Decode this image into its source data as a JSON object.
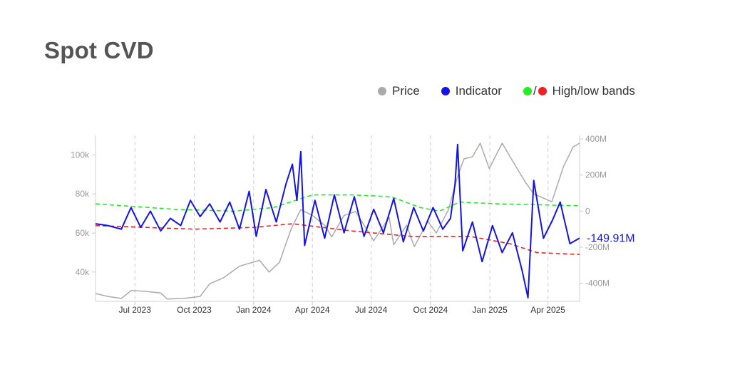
{
  "page": {
    "title": "Spot CVD"
  },
  "legend": {
    "price": {
      "label": "Price",
      "color": "#aaaaaa"
    },
    "indicator": {
      "label": "Indicator",
      "color": "#1414e6"
    },
    "bands": {
      "label": "High/low bands",
      "high_color": "#22ee22",
      "low_color": "#ee2222",
      "separator": "/"
    }
  },
  "chart_data": {
    "type": "line",
    "x_range": [
      "2023-05-01",
      "2025-05-20"
    ],
    "x_ticks": [
      "Jul 2023",
      "Oct 2023",
      "Jan 2024",
      "Apr 2024",
      "Jul 2024",
      "Oct 2024",
      "Jan 2025",
      "Apr 2025"
    ],
    "x_tick_dates": [
      "2023-07-01",
      "2023-10-01",
      "2024-01-01",
      "2024-04-01",
      "2024-07-01",
      "2024-10-01",
      "2025-01-01",
      "2025-04-01"
    ],
    "y_left": {
      "range": [
        25000,
        110000
      ],
      "ticks": [
        40000,
        60000,
        80000,
        100000
      ],
      "tick_labels": [
        "40k",
        "60k",
        "80k",
        "100k"
      ]
    },
    "y_right": {
      "range": [
        -500000000,
        420000000
      ],
      "ticks": [
        -400000000,
        -200000000,
        0,
        200000000,
        400000000
      ],
      "tick_labels": [
        "-400M",
        "-200M",
        "0",
        "200M",
        "400M"
      ]
    },
    "last_value_label": "-149.91M",
    "series": [
      {
        "name": "Price",
        "axis": "left",
        "color": "#aaaaaa",
        "dash": "solid",
        "points": [
          [
            "2023-05-01",
            29000
          ],
          [
            "2023-05-20",
            27500
          ],
          [
            "2023-06-10",
            26500
          ],
          [
            "2023-06-25",
            30500
          ],
          [
            "2023-07-15",
            30200
          ],
          [
            "2023-08-10",
            29300
          ],
          [
            "2023-08-20",
            26200
          ],
          [
            "2023-09-15",
            26500
          ],
          [
            "2023-10-10",
            27500
          ],
          [
            "2023-10-25",
            34000
          ],
          [
            "2023-11-15",
            37000
          ],
          [
            "2023-12-10",
            43000
          ],
          [
            "2024-01-10",
            46000
          ],
          [
            "2024-01-25",
            40000
          ],
          [
            "2024-02-10",
            45000
          ],
          [
            "2024-02-28",
            62000
          ],
          [
            "2024-03-14",
            72000
          ],
          [
            "2024-04-01",
            69000
          ],
          [
            "2024-04-20",
            64000
          ],
          [
            "2024-05-01",
            58000
          ],
          [
            "2024-05-20",
            69000
          ],
          [
            "2024-06-07",
            71000
          ],
          [
            "2024-07-05",
            56000
          ],
          [
            "2024-07-29",
            68000
          ],
          [
            "2024-08-05",
            54000
          ],
          [
            "2024-08-25",
            64000
          ],
          [
            "2024-09-06",
            53000
          ],
          [
            "2024-09-27",
            66000
          ],
          [
            "2024-10-10",
            60000
          ],
          [
            "2024-10-29",
            72000
          ],
          [
            "2024-11-12",
            89000
          ],
          [
            "2024-11-22",
            98000
          ],
          [
            "2024-12-05",
            99000
          ],
          [
            "2024-12-17",
            106000
          ],
          [
            "2024-12-31",
            93000
          ],
          [
            "2025-01-20",
            106000
          ],
          [
            "2025-02-05",
            97000
          ],
          [
            "2025-02-25",
            86000
          ],
          [
            "2025-03-10",
            80000
          ],
          [
            "2025-04-07",
            76000
          ],
          [
            "2025-04-25",
            94000
          ],
          [
            "2025-05-10",
            104000
          ],
          [
            "2025-05-20",
            106000
          ]
        ]
      },
      {
        "name": "Indicator",
        "axis": "right",
        "color": "#1414e6",
        "dash": "solid",
        "points": [
          [
            "2023-05-01",
            -70000000
          ],
          [
            "2023-05-20",
            -80000000
          ],
          [
            "2023-06-10",
            -100000000
          ],
          [
            "2023-06-25",
            20000000
          ],
          [
            "2023-07-10",
            -90000000
          ],
          [
            "2023-07-25",
            0
          ],
          [
            "2023-08-10",
            -110000000
          ],
          [
            "2023-08-25",
            -40000000
          ],
          [
            "2023-09-10",
            -80000000
          ],
          [
            "2023-09-25",
            60000000
          ],
          [
            "2023-10-10",
            -30000000
          ],
          [
            "2023-10-25",
            40000000
          ],
          [
            "2023-11-10",
            -60000000
          ],
          [
            "2023-11-25",
            50000000
          ],
          [
            "2023-12-10",
            -100000000
          ],
          [
            "2023-12-25",
            110000000
          ],
          [
            "2024-01-05",
            -140000000
          ],
          [
            "2024-01-20",
            120000000
          ],
          [
            "2024-02-05",
            -60000000
          ],
          [
            "2024-02-20",
            150000000
          ],
          [
            "2024-03-01",
            260000000
          ],
          [
            "2024-03-08",
            60000000
          ],
          [
            "2024-03-14",
            330000000
          ],
          [
            "2024-03-20",
            -190000000
          ],
          [
            "2024-04-05",
            60000000
          ],
          [
            "2024-04-20",
            -150000000
          ],
          [
            "2024-05-05",
            90000000
          ],
          [
            "2024-05-20",
            -120000000
          ],
          [
            "2024-06-05",
            80000000
          ],
          [
            "2024-06-20",
            -140000000
          ],
          [
            "2024-07-05",
            10000000
          ],
          [
            "2024-07-20",
            -120000000
          ],
          [
            "2024-08-05",
            70000000
          ],
          [
            "2024-08-20",
            -170000000
          ],
          [
            "2024-09-05",
            20000000
          ],
          [
            "2024-09-20",
            -110000000
          ],
          [
            "2024-10-05",
            20000000
          ],
          [
            "2024-10-20",
            -100000000
          ],
          [
            "2024-11-01",
            -40000000
          ],
          [
            "2024-11-08",
            150000000
          ],
          [
            "2024-11-12",
            370000000
          ],
          [
            "2024-11-20",
            -220000000
          ],
          [
            "2024-12-05",
            -60000000
          ],
          [
            "2024-12-20",
            -280000000
          ],
          [
            "2025-01-05",
            -80000000
          ],
          [
            "2025-01-20",
            -230000000
          ],
          [
            "2025-02-05",
            -120000000
          ],
          [
            "2025-02-20",
            -330000000
          ],
          [
            "2025-03-01",
            -480000000
          ],
          [
            "2025-03-10",
            170000000
          ],
          [
            "2025-03-25",
            -150000000
          ],
          [
            "2025-04-08",
            -50000000
          ],
          [
            "2025-04-20",
            50000000
          ],
          [
            "2025-05-05",
            -180000000
          ],
          [
            "2025-05-20",
            -149910000
          ]
        ]
      },
      {
        "name": "High band",
        "axis": "right",
        "color": "#22ee22",
        "dash": "dashed",
        "points": [
          [
            "2023-05-01",
            40000000
          ],
          [
            "2023-09-01",
            10000000
          ],
          [
            "2023-12-01",
            0
          ],
          [
            "2024-02-01",
            20000000
          ],
          [
            "2024-04-01",
            90000000
          ],
          [
            "2024-06-01",
            90000000
          ],
          [
            "2024-08-01",
            80000000
          ],
          [
            "2024-09-15",
            20000000
          ],
          [
            "2024-10-15",
            0
          ],
          [
            "2024-11-15",
            50000000
          ],
          [
            "2025-01-15",
            40000000
          ],
          [
            "2025-05-20",
            30000000
          ]
        ]
      },
      {
        "name": "Low band",
        "axis": "right",
        "color": "#ee2222",
        "dash": "dashed",
        "points": [
          [
            "2023-05-01",
            -80000000
          ],
          [
            "2023-10-01",
            -100000000
          ],
          [
            "2024-01-01",
            -90000000
          ],
          [
            "2024-03-01",
            -70000000
          ],
          [
            "2024-06-01",
            -110000000
          ],
          [
            "2024-09-01",
            -140000000
          ],
          [
            "2024-12-01",
            -140000000
          ],
          [
            "2025-02-01",
            -180000000
          ],
          [
            "2025-03-15",
            -230000000
          ],
          [
            "2025-05-20",
            -240000000
          ]
        ]
      }
    ]
  }
}
